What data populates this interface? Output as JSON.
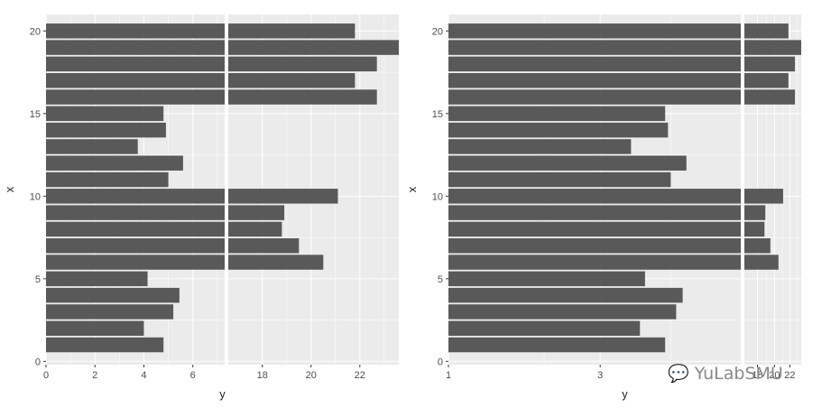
{
  "chart_data": [
    {
      "type": "bar",
      "orientation": "horizontal",
      "xlabel": "y",
      "ylabel": "x",
      "scale": "broken-linear",
      "segments": [
        {
          "range": [
            0,
            7.3
          ],
          "ticks": [
            "0",
            "2",
            "4",
            "6"
          ],
          "tick_values": [
            0,
            2,
            4,
            6
          ]
        },
        {
          "range": [
            16.6,
            23.6
          ],
          "ticks": [
            "18",
            "20",
            "22"
          ],
          "tick_values": [
            18,
            20,
            22
          ]
        }
      ],
      "y_ticks": [
        "0",
        "5",
        "10",
        "15",
        "20"
      ],
      "y_tick_values": [
        0,
        5,
        10,
        15,
        20
      ],
      "ylim": [
        -0.2,
        21.0
      ],
      "grid": true,
      "x": [
        1,
        2,
        3,
        4,
        5,
        6,
        7,
        8,
        9,
        10,
        11,
        12,
        13,
        14,
        15,
        16,
        17,
        18,
        19,
        20
      ],
      "values": [
        4.8,
        4.0,
        5.2,
        5.45,
        4.15,
        20.5,
        19.5,
        18.8,
        18.9,
        21.1,
        5.0,
        5.6,
        3.75,
        4.9,
        4.8,
        22.7,
        21.8,
        22.7,
        23.6,
        21.8
      ]
    },
    {
      "type": "bar",
      "orientation": "horizontal",
      "xlabel": "y",
      "ylabel": "x",
      "scale": "broken-log",
      "segments": [
        {
          "range": [
            1,
            8.3
          ],
          "ticks": [
            "1",
            "3"
          ],
          "tick_values": [
            1,
            3
          ]
        },
        {
          "range": [
            16.6,
            23.6
          ],
          "ticks": [
            "18",
            "20",
            "22"
          ],
          "tick_values": [
            18,
            20,
            22
          ]
        }
      ],
      "y_ticks": [
        "0",
        "5",
        "10",
        "15",
        "20"
      ],
      "y_tick_values": [
        0,
        5,
        10,
        15,
        20
      ],
      "ylim": [
        -0.2,
        21.0
      ],
      "grid": true,
      "x": [
        1,
        2,
        3,
        4,
        5,
        6,
        7,
        8,
        9,
        10,
        11,
        12,
        13,
        14,
        15,
        16,
        17,
        18,
        19,
        20
      ],
      "values": [
        4.8,
        4.0,
        5.2,
        5.45,
        4.15,
        20.5,
        19.5,
        18.8,
        18.9,
        21.1,
        5.0,
        5.6,
        3.75,
        4.9,
        4.8,
        22.7,
        21.8,
        22.7,
        23.6,
        21.8
      ]
    }
  ],
  "watermark": "💬 YuLabSMU",
  "colors": {
    "panel": "#ebebeb",
    "bar": "#595959",
    "grid": "#ffffff",
    "text": "#4d4d4d"
  }
}
